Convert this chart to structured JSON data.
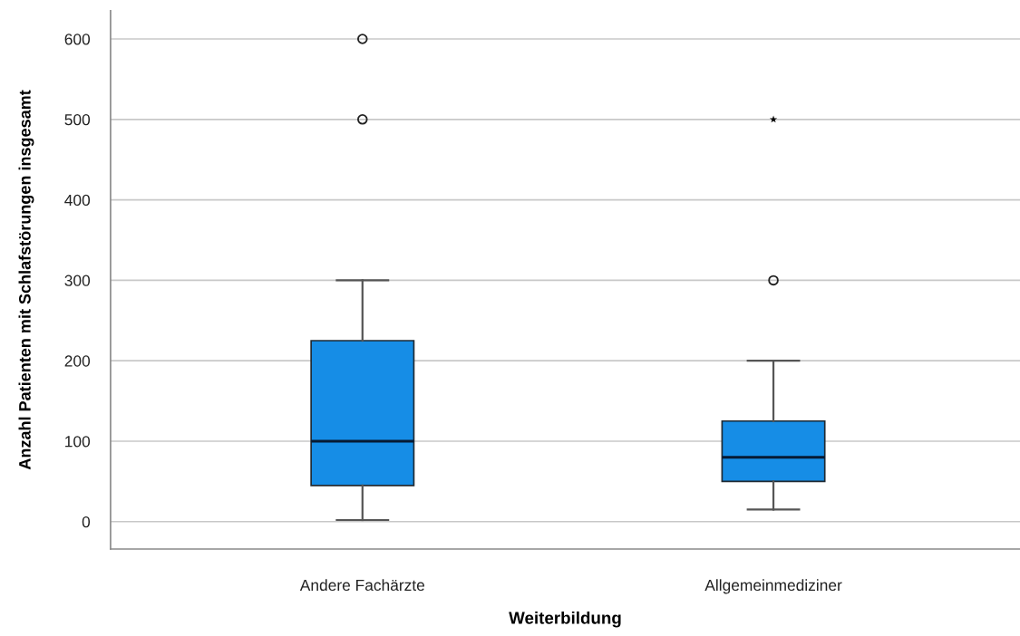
{
  "chart_data": {
    "type": "box",
    "xlabel": "Weiterbildung",
    "ylabel": "Anzahl Patienten mit Schlafstörungen insgesamt",
    "categories": [
      "Andere Fachärzte",
      "Allgemeinmediziner"
    ],
    "series": [
      {
        "color": "#168de6",
        "marker": "circle",
        "boxes": [
          {
            "low": 2,
            "q1": 45,
            "median": 100,
            "q3": 225,
            "high": 300,
            "outliers": [
              500,
              600
            ]
          },
          {
            "low": 15,
            "q1": 50,
            "median": 80,
            "q3": 125,
            "high": 200,
            "outliers": [
              300
            ]
          }
        ]
      },
      {
        "type": "scatter",
        "marker": "star",
        "color": "#000000",
        "x": [
          "Allgemeinmediziner"
        ],
        "values": [
          500
        ]
      }
    ],
    "ylim": [
      -34,
      635
    ],
    "yticks": [
      0,
      100,
      200,
      300,
      400,
      500,
      600
    ],
    "grid": "y"
  }
}
